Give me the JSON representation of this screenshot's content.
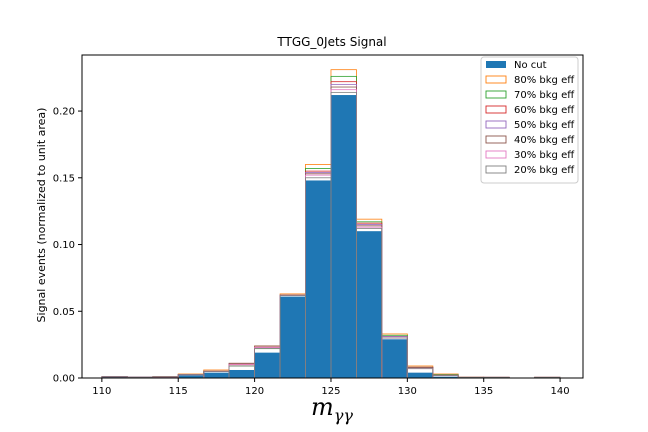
{
  "chart_data": {
    "type": "bar",
    "title": "TTGG_0Jets Signal",
    "xlabel_base": "m",
    "xlabel_sub": "γγ",
    "ylabel": "Signal events (normalized to unit area)",
    "xlim": [
      108.7,
      141.5
    ],
    "ylim": [
      0,
      0.242
    ],
    "xticks": [
      110,
      115,
      120,
      125,
      130,
      135,
      140
    ],
    "yticks": [
      0.0,
      0.05,
      0.1,
      0.15,
      0.2
    ],
    "ytick_labels": [
      "0.00",
      "0.05",
      "0.10",
      "0.15",
      "0.20"
    ],
    "bin_edges": [
      110,
      111.67,
      113.33,
      115,
      116.67,
      118.33,
      120,
      121.67,
      123.33,
      125,
      126.67,
      128.33,
      130,
      131.67,
      133.33,
      135,
      136.67,
      138.33,
      140
    ],
    "legend_position": "top-right",
    "series": [
      {
        "name": "No cut",
        "style": "filled",
        "color": "#1f77b4",
        "values": [
          0.001,
          0.0005,
          0.0008,
          0.002,
          0.004,
          0.006,
          0.019,
          0.061,
          0.148,
          0.212,
          0.11,
          0.029,
          0.004,
          0.001,
          0.0003,
          0.0005,
          0.0,
          0.0005
        ]
      },
      {
        "name": "80% bkg eff",
        "style": "step",
        "color": "#ff7f0e",
        "values": [
          0.001,
          0.0008,
          0.001,
          0.003,
          0.006,
          0.011,
          0.024,
          0.063,
          0.16,
          0.231,
          0.119,
          0.033,
          0.009,
          0.003,
          0.0006,
          0.0005,
          0.0,
          0.0005
        ]
      },
      {
        "name": "70% bkg eff",
        "style": "step",
        "color": "#2ca02c",
        "values": [
          0.001,
          0.0007,
          0.0009,
          0.0025,
          0.005,
          0.009,
          0.022,
          0.062,
          0.157,
          0.226,
          0.117,
          0.032,
          0.008,
          0.0025,
          0.0005,
          0.0005,
          0.0,
          0.0005
        ]
      },
      {
        "name": "60% bkg eff",
        "style": "step",
        "color": "#d62728",
        "values": [
          0.001,
          0.0007,
          0.0009,
          0.0025,
          0.005,
          0.01,
          0.023,
          0.062,
          0.155,
          0.222,
          0.116,
          0.031,
          0.008,
          0.002,
          0.0005,
          0.0005,
          0.0,
          0.0005
        ]
      },
      {
        "name": "50% bkg eff",
        "style": "step",
        "color": "#9467bd",
        "values": [
          0.001,
          0.0007,
          0.0009,
          0.0025,
          0.005,
          0.011,
          0.023,
          0.062,
          0.154,
          0.22,
          0.115,
          0.031,
          0.008,
          0.002,
          0.0005,
          0.0005,
          0.0,
          0.0005
        ]
      },
      {
        "name": "40% bkg eff",
        "style": "step",
        "color": "#8c564b",
        "values": [
          0.001,
          0.0007,
          0.0009,
          0.0025,
          0.005,
          0.011,
          0.024,
          0.062,
          0.153,
          0.218,
          0.114,
          0.03,
          0.008,
          0.002,
          0.0005,
          0.0005,
          0.0,
          0.0005
        ]
      },
      {
        "name": "30% bkg eff",
        "style": "step",
        "color": "#e377c2",
        "values": [
          0.001,
          0.0007,
          0.0009,
          0.0025,
          0.005,
          0.01,
          0.023,
          0.062,
          0.152,
          0.216,
          0.113,
          0.03,
          0.007,
          0.002,
          0.0005,
          0.0005,
          0.0,
          0.0005
        ]
      },
      {
        "name": "20% bkg eff",
        "style": "step",
        "color": "#7f7f7f",
        "values": [
          0.001,
          0.0007,
          0.0009,
          0.0025,
          0.005,
          0.009,
          0.022,
          0.062,
          0.15,
          0.214,
          0.112,
          0.03,
          0.007,
          0.002,
          0.0005,
          0.0005,
          0.0,
          0.0005
        ]
      }
    ]
  }
}
